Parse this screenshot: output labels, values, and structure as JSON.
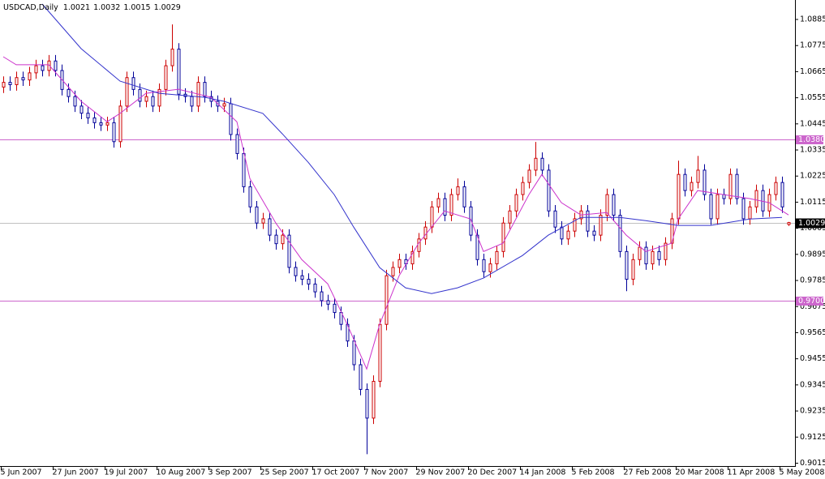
{
  "chart_data": {
    "type": "candlestick",
    "title": "USDCAD,Daily",
    "up_color": "#cc0000",
    "down_color": "#000099",
    "ylim": [
      0.9003,
      1.0967
    ],
    "yticks": [
      1.0885,
      1.0775,
      1.0665,
      1.0555,
      1.0445,
      1.0335,
      1.0225,
      1.0115,
      1.0005,
      0.9895,
      0.9785,
      0.9675,
      0.9565,
      0.9455,
      0.9345,
      0.9235,
      0.9125,
      0.9015
    ],
    "xlim": [
      -0.5,
      122
    ],
    "xticks": [
      {
        "value": 0,
        "label": "5 Jun 2007"
      },
      {
        "value": 8,
        "label": "27 Jun 2007"
      },
      {
        "value": 16,
        "label": "19 Jul 2007"
      },
      {
        "value": 24,
        "label": "10 Aug 2007"
      },
      {
        "value": 32,
        "label": "3 Sep 2007"
      },
      {
        "value": 40,
        "label": "25 Sep 2007"
      },
      {
        "value": 48,
        "label": "17 Oct 2007"
      },
      {
        "value": 56,
        "label": "7 Nov 2007"
      },
      {
        "value": 64,
        "label": "29 Nov 2007"
      },
      {
        "value": 72,
        "label": "20 Dec 2007"
      },
      {
        "value": 80,
        "label": "14 Jan 2008"
      },
      {
        "value": 88,
        "label": "5 Feb 2008"
      },
      {
        "value": 96,
        "label": "27 Feb 2008"
      },
      {
        "value": 104,
        "label": "20 Mar 2008"
      },
      {
        "value": 112,
        "label": "11 Apr 2008"
      },
      {
        "value": 120,
        "label": "5 May 2008"
      }
    ],
    "open": [
      1.06,
      1.062,
      1.061,
      1.064,
      1.063,
      1.066,
      1.069,
      1.067,
      1.071,
      1.067,
      1.059,
      1.056,
      1.052,
      1.049,
      1.047,
      1.045,
      1.044,
      1.045,
      1.037,
      1.052,
      1.064,
      1.059,
      1.054,
      1.056,
      1.052,
      1.059,
      1.069,
      1.076,
      1.057,
      1.056,
      1.052,
      1.062,
      1.056,
      1.054,
      1.052,
      1.053,
      1.04,
      1.032,
      1.018,
      1.0095,
      1.0027,
      1.0045,
      0.9976,
      0.994,
      0.9976,
      0.984,
      0.9805,
      0.979,
      0.977,
      0.9737,
      0.97,
      0.9685,
      0.965,
      0.96,
      0.953,
      0.943,
      0.9326,
      0.9205,
      0.936,
      0.96,
      0.9805,
      0.984,
      0.9873,
      0.9855,
      0.9907,
      0.996,
      1.001,
      1.0095,
      1.013,
      1.006,
      1.0147,
      1.018,
      1.0095,
      0.9976,
      0.9873,
      0.9822,
      0.9855,
      0.9907,
      1.0027,
      1.0078,
      1.0147,
      1.0198,
      1.025,
      1.03,
      1.025,
      1.0078,
      1.001,
      0.996,
      0.9993,
      1.0045,
      1.0078,
      0.9993,
      0.9976,
      1.006,
      1.0147,
      1.006,
      0.9907,
      0.979,
      0.9873,
      0.9925,
      0.9855,
      0.9907,
      0.9873,
      0.9942,
      1.0045,
      1.0232,
      1.0164,
      1.0198,
      1.025,
      1.0147,
      1.0045,
      1.0147,
      1.013,
      1.0232,
      1.013,
      1.0045,
      1.0095,
      1.0164,
      1.0078,
      1.0147,
      1.0198,
      1.0021
    ],
    "high": [
      1.0645,
      1.0645,
      1.0665,
      1.0665,
      1.0685,
      1.0715,
      1.0715,
      1.0735,
      1.0735,
      1.0695,
      1.0615,
      1.0585,
      1.0545,
      1.0515,
      1.0495,
      1.0475,
      1.0475,
      1.0475,
      1.0545,
      1.0665,
      1.0665,
      1.0615,
      1.0585,
      1.0585,
      1.0615,
      1.0715,
      1.0864,
      1.0785,
      1.0595,
      1.0585,
      1.0645,
      1.0645,
      1.0585,
      1.0565,
      1.0555,
      1.0555,
      1.0425,
      1.0345,
      1.0205,
      1.012,
      1.007,
      1.007,
      1.0001,
      1.0001,
      1.0001,
      0.9865,
      0.983,
      0.9815,
      0.9795,
      0.9762,
      0.9725,
      0.971,
      0.9675,
      0.9625,
      0.9555,
      0.9455,
      0.9351,
      0.9385,
      0.9625,
      0.983,
      0.9865,
      0.9898,
      0.9898,
      0.9932,
      0.9985,
      1.0035,
      1.012,
      1.0155,
      1.0155,
      1.0172,
      1.0215,
      1.0205,
      1.012,
      1.0001,
      0.9898,
      0.988,
      0.9932,
      1.0052,
      1.0103,
      1.0172,
      1.0223,
      1.0275,
      1.0369,
      1.0325,
      1.0275,
      1.0103,
      1.0035,
      1.0018,
      1.007,
      1.0103,
      1.0103,
      1.0018,
      1.0085,
      1.0172,
      1.0172,
      1.0085,
      0.9932,
      0.9898,
      0.995,
      0.995,
      0.9932,
      0.9932,
      0.9967,
      1.007,
      1.029,
      1.0257,
      1.0223,
      1.031,
      1.0275,
      1.0172,
      1.0172,
      1.0172,
      1.0257,
      1.0257,
      1.0155,
      1.012,
      1.0189,
      1.0189,
      1.0172,
      1.0223,
      1.0223,
      1.0032
    ],
    "low": [
      1.0575,
      1.0585,
      1.0585,
      1.0605,
      1.0605,
      1.0635,
      1.0645,
      1.0645,
      1.0645,
      1.0565,
      1.0535,
      1.0495,
      1.0465,
      1.0445,
      1.0425,
      1.0415,
      1.0415,
      1.0345,
      1.0345,
      1.0495,
      1.0565,
      1.0515,
      1.0515,
      1.0495,
      1.0495,
      1.0565,
      1.0665,
      1.0545,
      1.0535,
      1.0495,
      1.0495,
      1.0535,
      1.0515,
      1.0495,
      1.0495,
      1.0375,
      1.0295,
      1.0155,
      1.007,
      1.0002,
      1.0002,
      0.9951,
      0.9915,
      0.9915,
      0.9815,
      0.978,
      0.9765,
      0.9745,
      0.9712,
      0.9675,
      0.966,
      0.9625,
      0.9575,
      0.9505,
      0.9405,
      0.9301,
      0.9053,
      0.918,
      0.9335,
      0.9575,
      0.978,
      0.9815,
      0.983,
      0.983,
      0.9882,
      0.9935,
      0.9985,
      1.007,
      1.0035,
      1.0035,
      1.0122,
      1.007,
      0.9951,
      0.9848,
      0.9797,
      0.9797,
      0.983,
      0.9882,
      1.0002,
      1.0053,
      1.0122,
      1.0173,
      1.0225,
      1.0225,
      1.0053,
      0.9985,
      0.9935,
      0.9935,
      0.9968,
      1.002,
      0.9968,
      0.9951,
      0.9951,
      1.0035,
      1.0035,
      0.9882,
      0.974,
      0.9765,
      0.9848,
      0.983,
      0.983,
      0.9848,
      0.9848,
      0.9917,
      1.002,
      1.0139,
      1.0139,
      1.0173,
      1.0122,
      1.002,
      1.002,
      1.0105,
      1.0105,
      1.0105,
      1.002,
      1.002,
      1.007,
      1.0053,
      1.0053,
      1.0122,
      1.007,
      1.0015
    ],
    "close": [
      1.062,
      1.061,
      1.064,
      1.063,
      1.066,
      1.069,
      1.067,
      1.071,
      1.067,
      1.059,
      1.056,
      1.052,
      1.049,
      1.047,
      1.045,
      1.044,
      1.045,
      1.037,
      1.052,
      1.064,
      1.059,
      1.054,
      1.056,
      1.052,
      1.059,
      1.069,
      1.076,
      1.057,
      1.056,
      1.052,
      1.062,
      1.056,
      1.054,
      1.052,
      1.053,
      1.04,
      1.032,
      1.018,
      1.0095,
      1.0027,
      1.0045,
      0.9976,
      0.994,
      0.9976,
      0.984,
      0.9805,
      0.979,
      0.977,
      0.9737,
      0.97,
      0.9685,
      0.965,
      0.96,
      0.953,
      0.943,
      0.9326,
      0.9205,
      0.936,
      0.96,
      0.9805,
      0.984,
      0.9873,
      0.9855,
      0.9907,
      0.996,
      1.001,
      1.0095,
      1.013,
      1.006,
      1.0147,
      1.018,
      1.0095,
      0.9976,
      0.9873,
      0.9822,
      0.9855,
      0.9907,
      1.0027,
      1.0078,
      1.0147,
      1.0198,
      1.025,
      1.03,
      1.025,
      1.0078,
      1.001,
      0.996,
      0.9993,
      1.0045,
      1.0078,
      0.9993,
      0.9976,
      1.006,
      1.0147,
      1.006,
      0.9907,
      0.979,
      0.9873,
      0.9925,
      0.9855,
      0.9907,
      0.9873,
      0.9942,
      1.0045,
      1.0232,
      1.0164,
      1.0198,
      1.025,
      1.0147,
      1.0045,
      1.0147,
      1.013,
      1.0232,
      1.013,
      1.0045,
      1.0095,
      1.0164,
      1.0078,
      1.0147,
      1.0198,
      1.0095,
      1.0029
    ],
    "moving_averages": [
      {
        "color": "#cc33cc",
        "x": [
          0,
          2,
          7,
          12,
          16,
          18,
          22,
          27,
          32,
          36,
          38,
          42,
          46,
          50,
          53,
          56,
          58,
          61,
          64,
          68,
          72,
          74,
          77,
          81,
          83,
          86,
          89,
          93,
          96,
          99,
          103,
          104,
          107,
          111,
          115,
          118,
          121
        ],
        "values": [
          1.0728,
          1.0694,
          1.0694,
          1.054,
          1.0454,
          1.0489,
          1.0574,
          1.0591,
          1.0557,
          1.0454,
          1.0215,
          1.0027,
          0.9873,
          0.9771,
          0.96,
          0.9412,
          0.96,
          0.9805,
          0.9942,
          1.0078,
          1.0044,
          0.9907,
          0.9942,
          1.0147,
          1.0232,
          1.0113,
          1.0061,
          1.0071,
          0.9976,
          0.9907,
          0.9942,
          1.0044,
          1.0164,
          1.0147,
          1.013,
          1.0113,
          1.0061
        ]
      },
      {
        "color": "#3333cc",
        "x": [
          6,
          12,
          18,
          24,
          31,
          34,
          40,
          43,
          47,
          51,
          54,
          58,
          62,
          66,
          70,
          74,
          80,
          84,
          89,
          95,
          99,
          104,
          109,
          115,
          120
        ],
        "values": [
          1.095,
          1.0762,
          1.0625,
          1.0574,
          1.0557,
          1.054,
          1.0489,
          1.0403,
          1.0283,
          1.0147,
          1.001,
          0.9839,
          0.9754,
          0.973,
          0.9754,
          0.9795,
          0.989,
          0.9976,
          1.0051,
          1.0051,
          1.0037,
          1.0017,
          1.0017,
          1.0044,
          1.0051
        ]
      }
    ],
    "hlines": [
      {
        "value": 1.038,
        "label": "1.0380",
        "color": "#cc66cc"
      },
      {
        "value": 0.97,
        "label": "0.9700",
        "color": "#cc66cc"
      }
    ],
    "price_line_color": "#c0c0c0"
  }
}
